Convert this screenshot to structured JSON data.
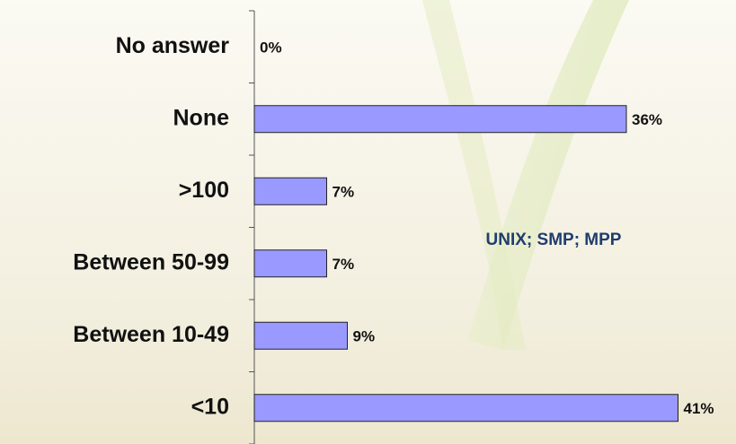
{
  "chart_data": {
    "type": "bar",
    "orientation": "horizontal",
    "categories": [
      "No answer",
      "None",
      ">100",
      "Between 50-99",
      "Between 10-49",
      "<10"
    ],
    "values": [
      0,
      36,
      7,
      7,
      9,
      41
    ],
    "value_labels": [
      "0%",
      "36%",
      "7%",
      "7%",
      "9%",
      "41%"
    ],
    "color": "#9999ff",
    "annotation": "UNIX; SMP; MPP"
  }
}
